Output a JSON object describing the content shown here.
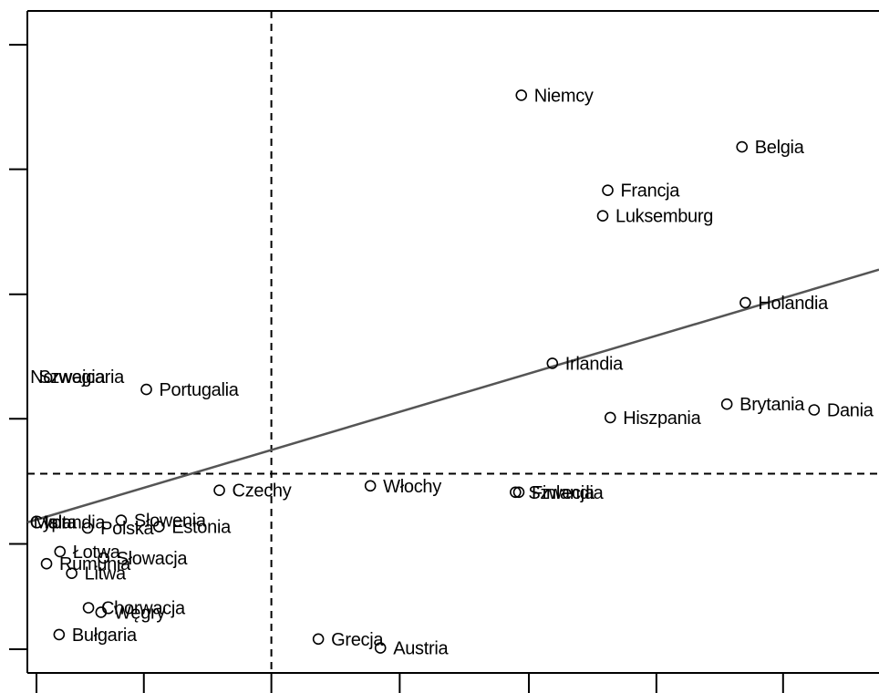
{
  "chart_data": {
    "type": "scatter",
    "title": "",
    "xlabel": "",
    "ylabel": "",
    "xlim": [
      0,
      100
    ],
    "ylim": [
      0,
      100
    ],
    "grid": false,
    "legend": "none",
    "points": [
      {
        "label": "Niemcy",
        "x": 57.8,
        "y": 86.8
      },
      {
        "label": "Belgia",
        "x": 84.1,
        "y": 78.7
      },
      {
        "label": "Francja",
        "x": 68.1,
        "y": 71.9
      },
      {
        "label": "Luksemburg",
        "x": 67.5,
        "y": 67.9
      },
      {
        "label": "Holandia",
        "x": 84.5,
        "y": 54.3
      },
      {
        "label": "Irlandia",
        "x": 61.5,
        "y": 44.8
      },
      {
        "label": "Portugalia",
        "x": 13.1,
        "y": 40.7
      },
      {
        "label": "Brytania",
        "x": 82.3,
        "y": 38.4
      },
      {
        "label": "Dania",
        "x": 92.7,
        "y": 37.5
      },
      {
        "label": "Hiszpania",
        "x": 68.4,
        "y": 36.3
      },
      {
        "label": "Czechy",
        "x": 21.8,
        "y": 24.9
      },
      {
        "label": "Włochy",
        "x": 39.8,
        "y": 25.6
      },
      {
        "label": "Szwecja",
        "x": 57.1,
        "y": 24.6
      },
      {
        "label": "Finlandia",
        "x": 57.5,
        "y": 24.6
      },
      {
        "label": "Słowenia",
        "x": 10.1,
        "y": 20.2
      },
      {
        "label": "Estonia",
        "x": 14.6,
        "y": 19.2
      },
      {
        "label": "Polska",
        "x": 6.1,
        "y": 19.0
      },
      {
        "label": "Łotwa",
        "x": 2.8,
        "y": 15.3
      },
      {
        "label": "Słowacja",
        "x": 8.0,
        "y": 14.3
      },
      {
        "label": "Rumunia",
        "x": 1.2,
        "y": 13.4
      },
      {
        "label": "Litwa",
        "x": 4.2,
        "y": 11.9
      },
      {
        "label": "Chorwacja",
        "x": 6.2,
        "y": 6.5
      },
      {
        "label": "Węgry",
        "x": 7.7,
        "y": 5.8
      },
      {
        "label": "Bułgaria",
        "x": 2.7,
        "y": 2.3
      },
      {
        "label": "Grecja",
        "x": 33.6,
        "y": 1.6
      },
      {
        "label": "Austria",
        "x": 41.0,
        "y": 0.2
      }
    ],
    "clipped_labels": [
      {
        "text": "Norwegia",
        "x": 0.0,
        "y": 42.7
      },
      {
        "text": "Szwajcaria",
        "x": 0.0,
        "y": 42.7
      },
      {
        "text": "Islandia",
        "x": 0.0,
        "y": 19.9
      },
      {
        "text": "Cypr",
        "x": 0.0,
        "y": 19.9
      },
      {
        "text": "Malta",
        "x": 0.0,
        "y": 19.9
      }
    ],
    "reference_lines": {
      "x": 28.0,
      "y": 27.5
    },
    "trend_line": {
      "from": [
        0,
        20.3
      ],
      "to": [
        100,
        59.3
      ]
    },
    "x_ticks": [
      0,
      12.8,
      28.0,
      43.3,
      58.7,
      73.9,
      89.0
    ],
    "y_ticks": [
      0,
      16.5,
      36.1,
      55.6,
      75.2,
      94.7
    ]
  }
}
